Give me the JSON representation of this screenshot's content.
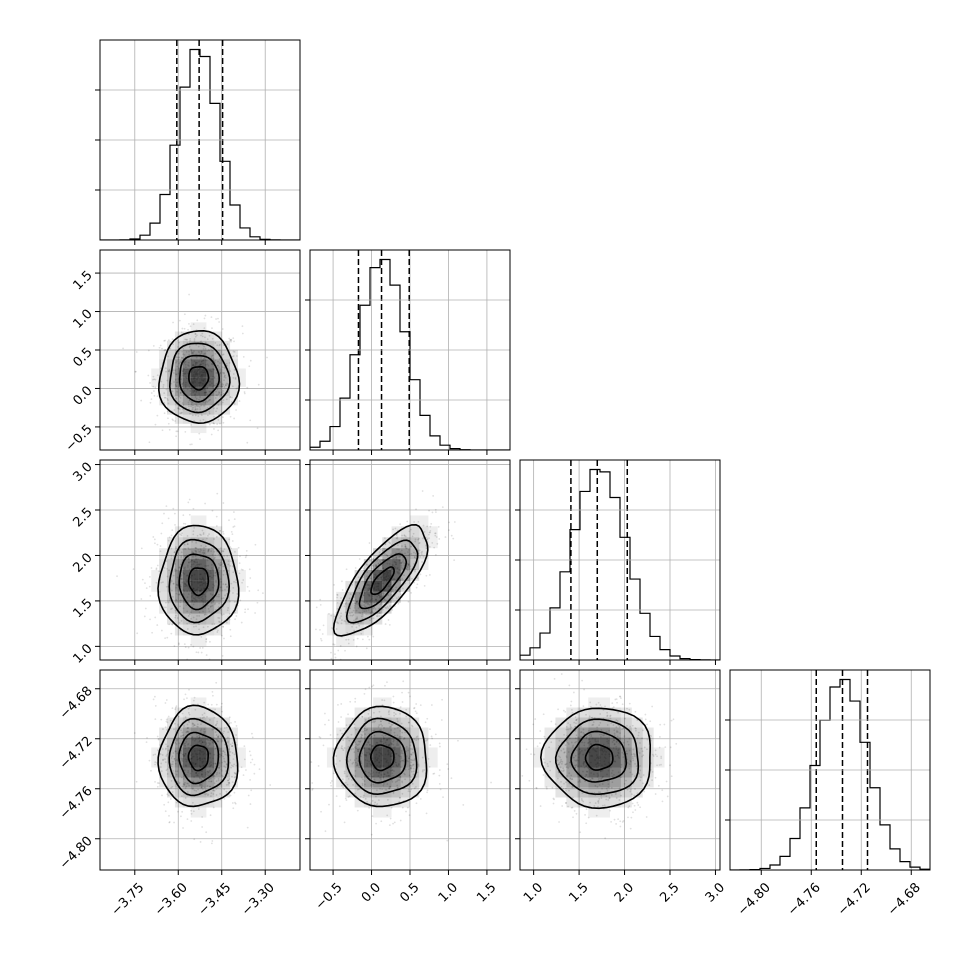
{
  "chart_data": {
    "type": "corner",
    "grid": true,
    "colors": {
      "line": "#000000",
      "grid": "#b0b0b0",
      "density": "#000000"
    },
    "parameters": [
      {
        "range": [
          -3.87,
          -3.18
        ],
        "ticks": [
          -3.75,
          -3.6,
          -3.45,
          -3.3
        ],
        "tick_labels": [
          "−3.75",
          "−3.60",
          "−3.45",
          "−3.30"
        ],
        "mean": -3.53,
        "std": 0.068,
        "quantiles": [
          -3.605,
          -3.528,
          -3.447
        ]
      },
      {
        "range": [
          -0.8,
          1.8
        ],
        "ticks": [
          -0.5,
          0.0,
          0.5,
          1.0,
          1.5
        ],
        "tick_labels": [
          "−0.5",
          "0.0",
          "0.5",
          "1.0",
          "1.5"
        ],
        "mean": 0.14,
        "std": 0.3,
        "quantiles": [
          -0.17,
          0.13,
          0.49
        ]
      },
      {
        "range": [
          0.85,
          3.05
        ],
        "ticks": [
          1.0,
          1.5,
          2.0,
          2.5,
          3.0
        ],
        "tick_labels": [
          "1.0",
          "1.5",
          "2.0",
          "2.5",
          "3.0"
        ],
        "mean": 1.72,
        "std": 0.3,
        "quantiles": [
          1.41,
          1.7,
          2.03
        ]
      },
      {
        "range": [
          -4.825,
          -4.665
        ],
        "ticks": [
          -4.8,
          -4.76,
          -4.72,
          -4.68
        ],
        "tick_labels": [
          "−4.80",
          "−4.76",
          "−4.72",
          "−4.68"
        ],
        "mean": -4.735,
        "std": 0.02,
        "quantiles": [
          -4.756,
          -4.735,
          -4.715
        ]
      }
    ],
    "correlations": [
      [
        1.0,
        0.0,
        0.0,
        0.0
      ],
      [
        0.0,
        1.0,
        0.75,
        0.0
      ],
      [
        0.0,
        0.75,
        1.0,
        0.0
      ],
      [
        0.0,
        0.0,
        0.0,
        1.0
      ]
    ],
    "contour_levels_sigma": [
      0.5,
      1.0,
      1.5,
      2.0
    ]
  }
}
